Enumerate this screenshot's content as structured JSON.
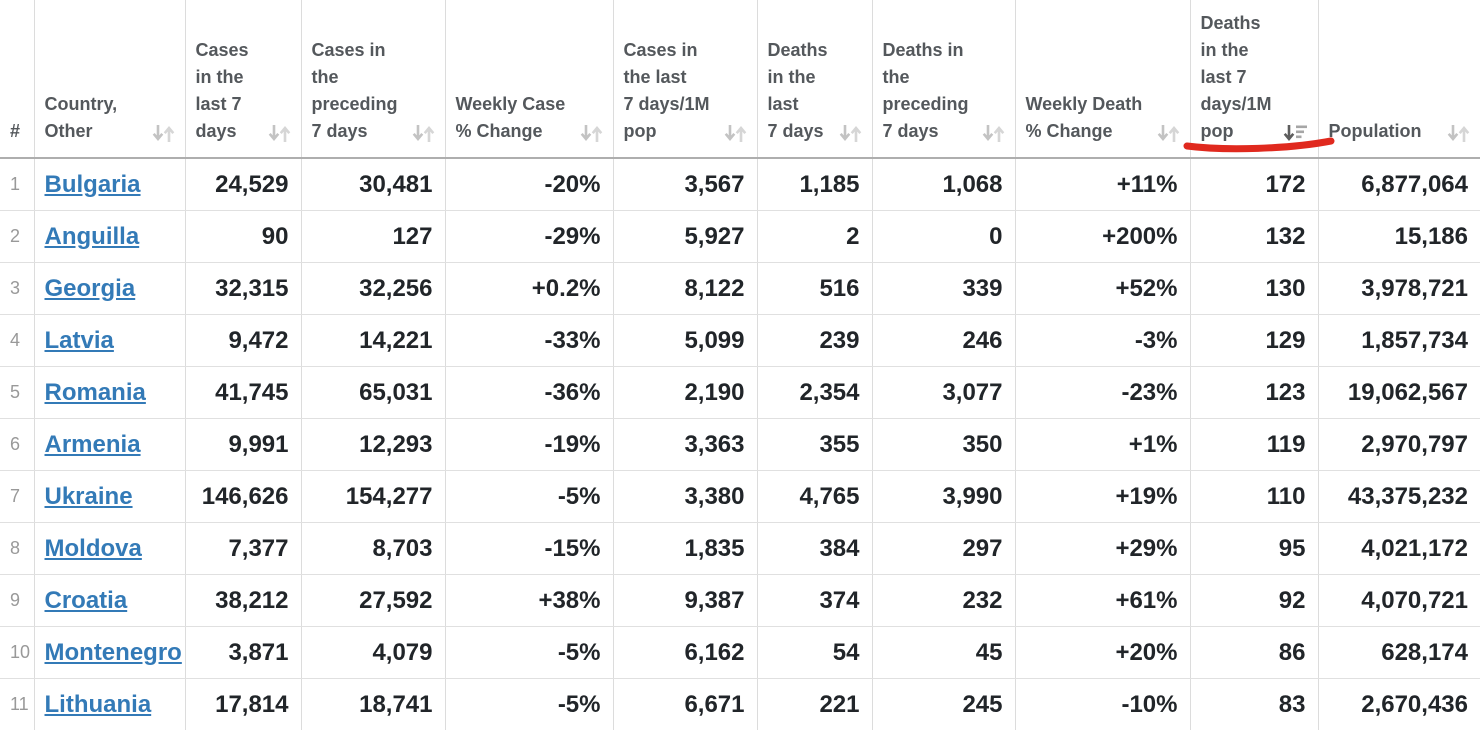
{
  "table": {
    "columns": [
      {
        "id": "rank",
        "label": "#",
        "sortable": false,
        "sort": "none"
      },
      {
        "id": "country",
        "label": "Country,\nOther",
        "sortable": true,
        "sort": "none"
      },
      {
        "id": "cases_last_7d",
        "label": "Cases\nin the\nlast 7\ndays",
        "sortable": true,
        "sort": "none"
      },
      {
        "id": "cases_preceding_7d",
        "label": "Cases in\nthe\npreceding\n7 days",
        "sortable": true,
        "sort": "none"
      },
      {
        "id": "weekly_case_change",
        "label": "Weekly Case\n% Change",
        "sortable": true,
        "sort": "none"
      },
      {
        "id": "cases_per_1m_pop",
        "label": "Cases in\nthe last\n7 days/1M\npop",
        "sortable": true,
        "sort": "none"
      },
      {
        "id": "deaths_last_7d",
        "label": "Deaths\nin the\nlast\n7 days",
        "sortable": true,
        "sort": "none"
      },
      {
        "id": "deaths_preceding_7d",
        "label": "Deaths in\nthe\npreceding\n7 days",
        "sortable": true,
        "sort": "none"
      },
      {
        "id": "weekly_death_change",
        "label": "Weekly Death\n% Change",
        "sortable": true,
        "sort": "none"
      },
      {
        "id": "deaths_per_1m_pop",
        "label": "Deaths\nin the\nlast 7\ndays/1M\npop",
        "sortable": true,
        "sort": "desc",
        "annotated": true
      },
      {
        "id": "population",
        "label": "Population",
        "sortable": true,
        "sort": "none"
      }
    ],
    "rows": [
      {
        "rank": "1",
        "country": "Bulgaria",
        "cases_last_7d": "24,529",
        "cases_preceding_7d": "30,481",
        "weekly_case_change": "-20%",
        "cases_per_1m_pop": "3,567",
        "deaths_last_7d": "1,185",
        "deaths_preceding_7d": "1,068",
        "weekly_death_change": "+11%",
        "deaths_per_1m_pop": "172",
        "population": "6,877,064"
      },
      {
        "rank": "2",
        "country": "Anguilla",
        "cases_last_7d": "90",
        "cases_preceding_7d": "127",
        "weekly_case_change": "-29%",
        "cases_per_1m_pop": "5,927",
        "deaths_last_7d": "2",
        "deaths_preceding_7d": "0",
        "weekly_death_change": "+200%",
        "deaths_per_1m_pop": "132",
        "population": "15,186"
      },
      {
        "rank": "3",
        "country": "Georgia",
        "cases_last_7d": "32,315",
        "cases_preceding_7d": "32,256",
        "weekly_case_change": "+0.2%",
        "cases_per_1m_pop": "8,122",
        "deaths_last_7d": "516",
        "deaths_preceding_7d": "339",
        "weekly_death_change": "+52%",
        "deaths_per_1m_pop": "130",
        "population": "3,978,721"
      },
      {
        "rank": "4",
        "country": "Latvia",
        "cases_last_7d": "9,472",
        "cases_preceding_7d": "14,221",
        "weekly_case_change": "-33%",
        "cases_per_1m_pop": "5,099",
        "deaths_last_7d": "239",
        "deaths_preceding_7d": "246",
        "weekly_death_change": "-3%",
        "deaths_per_1m_pop": "129",
        "population": "1,857,734"
      },
      {
        "rank": "5",
        "country": "Romania",
        "cases_last_7d": "41,745",
        "cases_preceding_7d": "65,031",
        "weekly_case_change": "-36%",
        "cases_per_1m_pop": "2,190",
        "deaths_last_7d": "2,354",
        "deaths_preceding_7d": "3,077",
        "weekly_death_change": "-23%",
        "deaths_per_1m_pop": "123",
        "population": "19,062,567"
      },
      {
        "rank": "6",
        "country": "Armenia",
        "cases_last_7d": "9,991",
        "cases_preceding_7d": "12,293",
        "weekly_case_change": "-19%",
        "cases_per_1m_pop": "3,363",
        "deaths_last_7d": "355",
        "deaths_preceding_7d": "350",
        "weekly_death_change": "+1%",
        "deaths_per_1m_pop": "119",
        "population": "2,970,797"
      },
      {
        "rank": "7",
        "country": "Ukraine",
        "cases_last_7d": "146,626",
        "cases_preceding_7d": "154,277",
        "weekly_case_change": "-5%",
        "cases_per_1m_pop": "3,380",
        "deaths_last_7d": "4,765",
        "deaths_preceding_7d": "3,990",
        "weekly_death_change": "+19%",
        "deaths_per_1m_pop": "110",
        "population": "43,375,232"
      },
      {
        "rank": "8",
        "country": "Moldova",
        "cases_last_7d": "7,377",
        "cases_preceding_7d": "8,703",
        "weekly_case_change": "-15%",
        "cases_per_1m_pop": "1,835",
        "deaths_last_7d": "384",
        "deaths_preceding_7d": "297",
        "weekly_death_change": "+29%",
        "deaths_per_1m_pop": "95",
        "population": "4,021,172"
      },
      {
        "rank": "9",
        "country": "Croatia",
        "cases_last_7d": "38,212",
        "cases_preceding_7d": "27,592",
        "weekly_case_change": "+38%",
        "cases_per_1m_pop": "9,387",
        "deaths_last_7d": "374",
        "deaths_preceding_7d": "232",
        "weekly_death_change": "+61%",
        "deaths_per_1m_pop": "92",
        "population": "4,070,721"
      },
      {
        "rank": "10",
        "country": "Montenegro",
        "cases_last_7d": "3,871",
        "cases_preceding_7d": "4,079",
        "weekly_case_change": "-5%",
        "cases_per_1m_pop": "6,162",
        "deaths_last_7d": "54",
        "deaths_preceding_7d": "45",
        "weekly_death_change": "+20%",
        "deaths_per_1m_pop": "86",
        "population": "628,174"
      },
      {
        "rank": "11",
        "country": "Lithuania",
        "cases_last_7d": "17,814",
        "cases_preceding_7d": "18,741",
        "weekly_case_change": "-5%",
        "cases_per_1m_pop": "6,671",
        "deaths_last_7d": "221",
        "deaths_preceding_7d": "245",
        "weekly_death_change": "-10%",
        "deaths_per_1m_pop": "83",
        "population": "2,670,436"
      }
    ]
  },
  "annotation": {
    "shape": "hand-drawn-underline",
    "color": "#e0291e",
    "target_column": "deaths_per_1m_pop"
  },
  "colors": {
    "link": "#337ab7",
    "header_text": "#54585c",
    "cell_text": "#212529",
    "rank_text": "#999999",
    "cell_border": "#dcdcdc",
    "header_bottom_border": "#aeaeae",
    "sort_icon_inactive": "#c9c9c9",
    "sort_icon_active": "#5d5d5d"
  }
}
